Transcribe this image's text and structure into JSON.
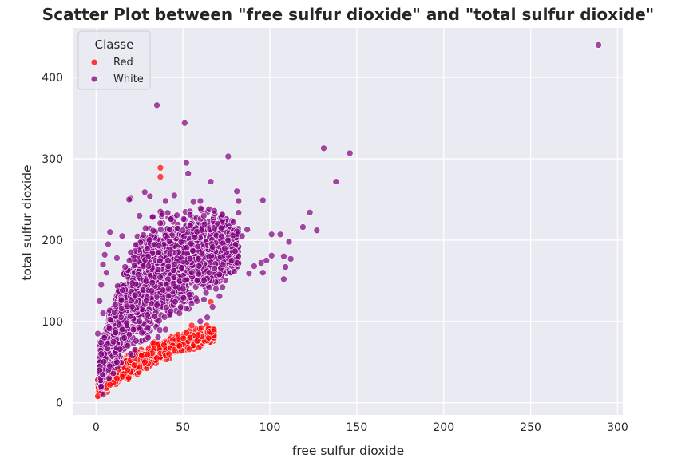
{
  "chart_data": {
    "type": "scatter",
    "title": "Scatter Plot between \"free sulfur dioxide\" and \"total sulfur dioxide\"",
    "xlabel": "free sulfur dioxide",
    "ylabel": "total sulfur dioxide",
    "xlim": [
      -13,
      303
    ],
    "ylim": [
      -15,
      461
    ],
    "x_ticks": [
      0,
      50,
      100,
      150,
      200,
      250,
      300
    ],
    "y_ticks": [
      0,
      100,
      200,
      300,
      400
    ],
    "grid": true,
    "background": "#eaeaf2",
    "legend": {
      "title": "Classe",
      "placement": "top-left",
      "entries": [
        {
          "label": "Red",
          "color": "#ff0000"
        },
        {
          "label": "White",
          "color": "#800080"
        }
      ]
    },
    "series": [
      {
        "name": "Red",
        "color": "#ff0000",
        "opacity": 0.7,
        "cluster": {
          "x_range": [
            1,
            68
          ],
          "y_min_over_x": [
            [
              1,
              6
            ],
            [
              10,
              15
            ],
            [
              30,
              40
            ],
            [
              50,
              58
            ],
            [
              68,
              70
            ]
          ],
          "y_max_over_x": [
            [
              1,
              30
            ],
            [
              10,
              55
            ],
            [
              30,
              75
            ],
            [
              50,
              90
            ],
            [
              68,
              100
            ]
          ],
          "approx_points": 1599
        },
        "points": [
          [
            37,
            289
          ],
          [
            37,
            278
          ],
          [
            66,
            124
          ],
          [
            55,
            95
          ],
          [
            54,
            80
          ],
          [
            50,
            72
          ],
          [
            45,
            65
          ],
          [
            40,
            58
          ],
          [
            35,
            55
          ],
          [
            30,
            48
          ],
          [
            25,
            44
          ],
          [
            20,
            38
          ],
          [
            15,
            32
          ],
          [
            10,
            25
          ],
          [
            6,
            18
          ],
          [
            3,
            12
          ],
          [
            1,
            8
          ],
          [
            2,
            44
          ],
          [
            1,
            28
          ],
          [
            48,
            70
          ],
          [
            42,
            60
          ],
          [
            28,
            50
          ],
          [
            22,
            46
          ],
          [
            18,
            40
          ],
          [
            12,
            30
          ],
          [
            8,
            22
          ]
        ]
      },
      {
        "name": "White",
        "color": "#800080",
        "opacity": 0.7,
        "cluster": {
          "x_range": [
            2,
            82
          ],
          "y_min_over_x": [
            [
              2,
              10
            ],
            [
              10,
              30
            ],
            [
              20,
              50
            ],
            [
              35,
              70
            ],
            [
              50,
              100
            ],
            [
              65,
              120
            ],
            [
              82,
              150
            ]
          ],
          "y_max_over_x": [
            [
              2,
              80
            ],
            [
              10,
              140
            ],
            [
              20,
              210
            ],
            [
              30,
              240
            ],
            [
              45,
              250
            ],
            [
              65,
              245
            ],
            [
              82,
              240
            ]
          ],
          "approx_points": 4898
        },
        "points": [
          [
            289,
            440
          ],
          [
            35,
            366
          ],
          [
            51,
            344
          ],
          [
            131,
            313
          ],
          [
            146,
            307
          ],
          [
            138,
            272
          ],
          [
            76,
            303
          ],
          [
            52,
            295
          ],
          [
            53,
            282
          ],
          [
            66,
            272
          ],
          [
            28,
            259
          ],
          [
            31,
            254
          ],
          [
            45,
            255
          ],
          [
            20,
            251
          ],
          [
            19,
            250
          ],
          [
            81,
            260
          ],
          [
            82,
            248
          ],
          [
            96,
            249
          ],
          [
            123,
            234
          ],
          [
            119,
            216
          ],
          [
            127,
            212
          ],
          [
            106,
            207
          ],
          [
            101,
            207
          ],
          [
            111,
            198
          ],
          [
            101,
            181
          ],
          [
            108,
            180
          ],
          [
            112,
            177
          ],
          [
            109,
            167
          ],
          [
            108,
            152
          ],
          [
            95,
            172
          ],
          [
            98,
            175
          ],
          [
            84,
            205
          ],
          [
            87,
            213
          ],
          [
            79,
            222
          ],
          [
            91,
            168
          ],
          [
            88,
            159
          ],
          [
            96,
            160
          ],
          [
            76,
            200
          ],
          [
            73,
            196
          ],
          [
            70,
            220
          ],
          [
            60,
            248
          ],
          [
            56,
            247
          ],
          [
            62,
            230
          ],
          [
            68,
            236
          ],
          [
            72,
            215
          ],
          [
            75,
            185
          ],
          [
            73,
            170
          ],
          [
            69,
            140
          ],
          [
            71,
            131
          ],
          [
            67,
            118
          ],
          [
            64,
            105
          ],
          [
            60,
            100
          ],
          [
            8,
            210
          ],
          [
            7,
            195
          ],
          [
            5,
            182
          ],
          [
            4,
            170
          ],
          [
            6,
            160
          ],
          [
            3,
            145
          ],
          [
            2,
            125
          ],
          [
            4,
            110
          ],
          [
            1,
            85
          ],
          [
            3,
            60
          ],
          [
            2,
            40
          ],
          [
            3,
            20
          ],
          [
            4,
            10
          ],
          [
            40,
            248
          ],
          [
            38,
            232
          ],
          [
            25,
            230
          ],
          [
            15,
            205
          ],
          [
            12,
            178
          ],
          [
            20,
            185
          ],
          [
            30,
            180
          ],
          [
            45,
            170
          ],
          [
            55,
            160
          ],
          [
            62,
            150
          ],
          [
            50,
            140
          ],
          [
            35,
            120
          ],
          [
            25,
            100
          ],
          [
            15,
            90
          ],
          [
            10,
            75
          ],
          [
            48,
            110
          ],
          [
            58,
            125
          ],
          [
            40,
            90
          ],
          [
            30,
            80
          ],
          [
            20,
            60
          ],
          [
            12,
            50
          ],
          [
            8,
            45
          ],
          [
            65,
            180
          ],
          [
            68,
            165
          ],
          [
            74,
            190
          ],
          [
            78,
            175
          ]
        ]
      }
    ]
  }
}
